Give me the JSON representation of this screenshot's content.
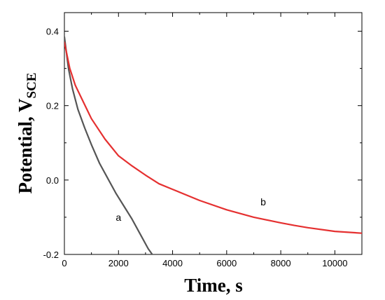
{
  "chart_data": {
    "type": "line",
    "title": "",
    "xlabel": "Time, s",
    "ylabel_main": "Potential, V",
    "ylabel_sub": "SCE",
    "xlim": [
      0,
      11000
    ],
    "ylim": [
      -0.2,
      0.45
    ],
    "x_ticks": [
      0,
      2000,
      4000,
      6000,
      8000,
      10000
    ],
    "x_tick_labels": [
      "0",
      "2000",
      "4000",
      "6000",
      "8000",
      "10000"
    ],
    "y_ticks": [
      -0.2,
      0.0,
      0.2,
      0.4
    ],
    "y_tick_labels": [
      "-0.2",
      "0.0",
      "0.2",
      "0.4"
    ],
    "grid": false,
    "series": [
      {
        "name": "a",
        "color": "#555555",
        "x": [
          0,
          150,
          300,
          500,
          750,
          1000,
          1300,
          1600,
          1900,
          2200,
          2500,
          2800,
          3100,
          3300
        ],
        "y": [
          0.385,
          0.3,
          0.245,
          0.19,
          0.14,
          0.095,
          0.045,
          0.005,
          -0.035,
          -0.07,
          -0.105,
          -0.145,
          -0.185,
          -0.205
        ]
      },
      {
        "name": "b",
        "color": "#e53030",
        "x": [
          0,
          200,
          400,
          700,
          1000,
          1500,
          2000,
          2500,
          3000,
          3500,
          4000,
          5000,
          6000,
          7000,
          8000,
          8500,
          9000,
          10000,
          11000
        ],
        "y": [
          0.37,
          0.3,
          0.255,
          0.21,
          0.165,
          0.11,
          0.065,
          0.038,
          0.013,
          -0.01,
          -0.025,
          -0.055,
          -0.08,
          -0.1,
          -0.115,
          -0.122,
          -0.128,
          -0.138,
          -0.143
        ]
      }
    ],
    "annotations": [
      {
        "text": "a",
        "x": 2000,
        "y": -0.11
      },
      {
        "text": "b",
        "x": 7350,
        "y": -0.068
      }
    ]
  }
}
